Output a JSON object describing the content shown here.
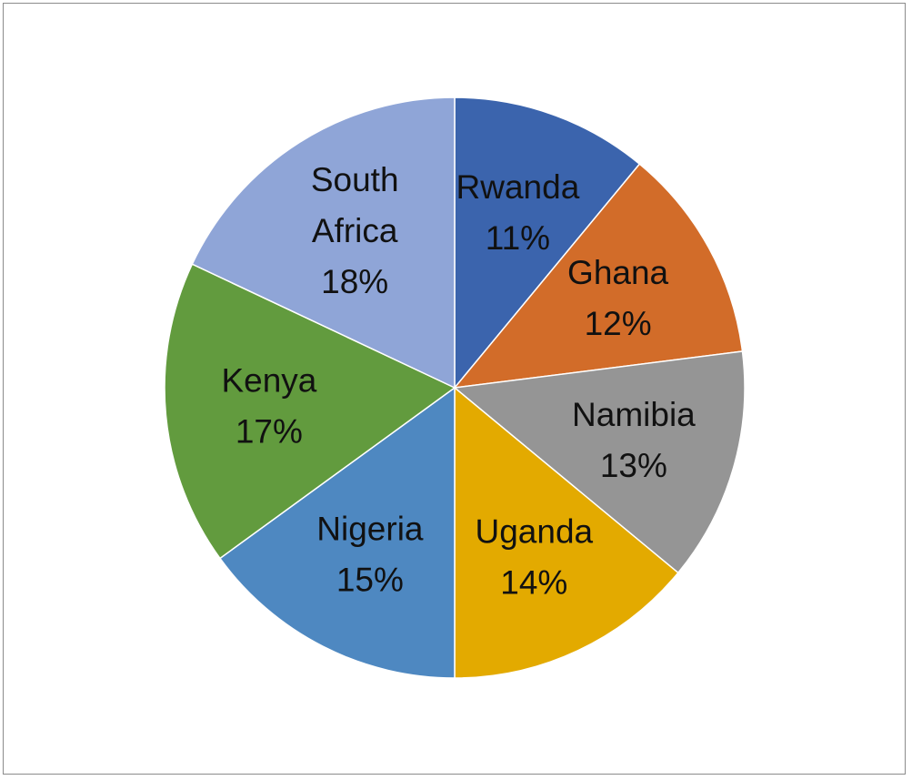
{
  "chart_data": {
    "type": "pie",
    "title": "",
    "legend": "none",
    "data_labels": "inside",
    "slices": [
      {
        "label_lines": [
          "Rwanda"
        ],
        "percent_label": "11%",
        "value": 11,
        "color": "#3b64ad"
      },
      {
        "label_lines": [
          "Ghana"
        ],
        "percent_label": "12%",
        "value": 12,
        "color": "#d26c29"
      },
      {
        "label_lines": [
          "Namibia"
        ],
        "percent_label": "13%",
        "value": 13,
        "color": "#959595"
      },
      {
        "label_lines": [
          "Uganda"
        ],
        "percent_label": "14%",
        "value": 14,
        "color": "#e3aa00"
      },
      {
        "label_lines": [
          "Nigeria"
        ],
        "percent_label": "15%",
        "value": 15,
        "color": "#4e88c1"
      },
      {
        "label_lines": [
          "Kenya"
        ],
        "percent_label": "17%",
        "value": 17,
        "color": "#629b3e"
      },
      {
        "label_lines": [
          "South",
          "Africa"
        ],
        "percent_label": "18%",
        "value": 18,
        "color": "#8fa5d7"
      }
    ]
  }
}
